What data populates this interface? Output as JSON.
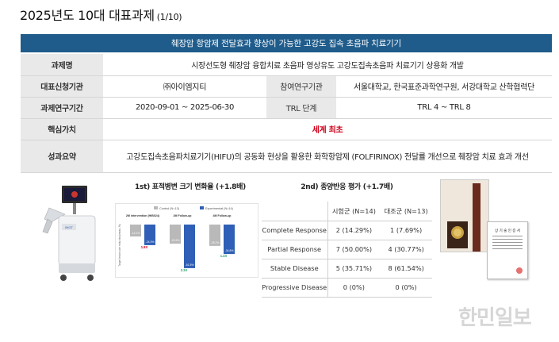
{
  "header": {
    "title": "2025년도 10대 대표과제",
    "page": "(1/10)"
  },
  "banner": "췌장암 항암제 전달효과 향상이 가능한 고강도 집속 초음파 치료기기",
  "info": {
    "task_name_label": "과제명",
    "task_name": "시장선도형 췌장암 융합치료 초음파 영상유도 고강도집속초음파 치료기기 상용화 개발",
    "lead_org_label": "대표신청기관",
    "lead_org": "㈜아이엠지티",
    "partner_label": "참여연구기관",
    "partner": "서울대학교, 한국표준과학연구원, 서강대학교 산학협력단",
    "period_label": "과제연구기간",
    "period": "2020-09-01 ~ 2025-06-30",
    "trl_label": "TRL 단계",
    "trl": "TRL 4 ~ TRL 8",
    "core_label": "핵심가치",
    "core": "세계 최초",
    "summary_label": "성과요약",
    "summary": "고강도집속초음파치료기기(HIFU)의 공동화 현상을 활용한 화학항암제 (FOLFIRINOX) 전달률 개선으로 췌장암 치료 효과 개선"
  },
  "chart_data": {
    "type": "bar",
    "title": "1st) 표적병변 크기 변화율 (+1.8배)",
    "legend": [
      "Control (N=13)",
      "Experimental (N=14)"
    ],
    "categories": [
      "2M intervention (HIB024)",
      "2M Follow-up",
      "4M Follow-up"
    ],
    "ylabel": "Target lesion size reduction(mean, %)",
    "series": [
      {
        "name": "Control (N=13)",
        "values": [
          -14.1,
          -22.6,
          -25.2
        ],
        "color": "#b9b9b9"
      },
      {
        "name": "Experimental (N=14)",
        "values": [
          -24.3,
          -51.5,
          -34.8
        ],
        "color": "#2f5fb6"
      }
    ],
    "ylim": [
      -60,
      0
    ],
    "annotations": [
      "1.8X",
      "2.3X",
      "1.4X"
    ],
    "annotation_colors": [
      "#d0021b",
      "#2aa06a",
      "#2aa06a"
    ]
  },
  "response": {
    "title": "2nd) 종양반응 평가 (+1.7배)",
    "columns": [
      "시험군 (N=14)",
      "대조군 (N=13)"
    ],
    "rows": [
      {
        "label": "Complete Response",
        "a": "2 (14.29%)",
        "b": "1 (7.69%)"
      },
      {
        "label": "Partial Response",
        "a": "7 (50.00%)",
        "b": "4 (30.77%)"
      },
      {
        "label": "Stable Disease",
        "a": "5 (35.71%)",
        "b": "8 (61.54%)"
      },
      {
        "label": "Progressive Disease",
        "a": "0 (0%)",
        "b": "0 (0%)"
      }
    ]
  },
  "certificate": {
    "title": "상 기 술 인 증 서"
  },
  "watermark": "한민일보"
}
